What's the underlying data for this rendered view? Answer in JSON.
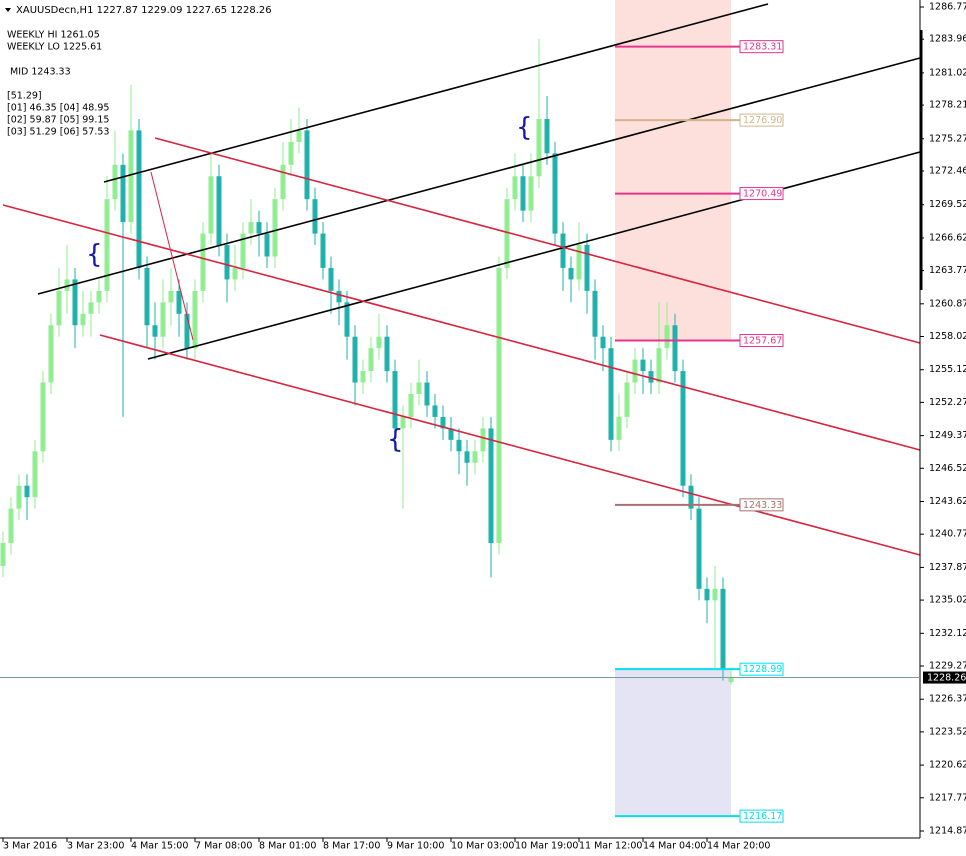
{
  "chart_data": {
    "type": "candlestick",
    "symbol": "XAUUSDecn,H1",
    "info": [
      "WEEKLY HI 1261.05",
      "WEEKLY LO 1225.61",
      "MID 1243.33",
      "[51.29]",
      "[01] 46.35  [04] 48.95",
      "[02] 59.87  [05] 99.15",
      "[03] 51.29  [06] 57.53"
    ],
    "categories": [
      "3 Mar 2016",
      null,
      null,
      null,
      null,
      null,
      null,
      null,
      "3 Mar 23:00",
      null,
      null,
      null,
      null,
      null,
      null,
      null,
      "4 Mar 15:00",
      null,
      null,
      null,
      null,
      null,
      null,
      null,
      "7 Mar 08:00",
      null,
      null,
      null,
      null,
      null,
      null,
      null,
      "8 Mar 01:00",
      null,
      null,
      null,
      null,
      null,
      null,
      null,
      "8 Mar 17:00",
      null,
      null,
      null,
      null,
      null,
      null,
      null,
      "9 Mar 10:00",
      null,
      null,
      null,
      null,
      null,
      null,
      null,
      "10 Mar 03:00",
      null,
      null,
      null,
      null,
      null,
      null,
      null,
      "10 Mar 19:00",
      null,
      null,
      null,
      null,
      null,
      null,
      null,
      "11 Mar 12:00",
      null,
      null,
      null,
      null,
      null,
      null,
      null,
      "14 Mar 04:00",
      null,
      null,
      null,
      null,
      null,
      null,
      null,
      "14 Mar 20:00",
      null,
      null,
      null
    ],
    "open": [
      1238,
      1240,
      1243,
      1245,
      1244,
      1248,
      1254,
      1259,
      1262,
      1263,
      1259,
      1260,
      1261,
      1262,
      1270,
      1273,
      1268,
      1276,
      1264,
      1259,
      1258,
      1261,
      1262,
      1260,
      1257,
      1262,
      1267,
      1272,
      1266,
      1263,
      1264,
      1267,
      1268,
      1267,
      1265,
      1270,
      1273,
      1275,
      1276,
      1270,
      1267,
      1264,
      1262,
      1261,
      1258,
      1254,
      1255,
      1257,
      1258,
      1255,
      1250,
      1251,
      1253,
      1254,
      1252,
      1251,
      1250,
      1249,
      1248,
      1247,
      1248,
      1250,
      1240,
      1264,
      1270,
      1272,
      1269,
      1272,
      1277,
      1274,
      1267,
      1264,
      1263,
      1266,
      1262,
      1258,
      1257,
      1249,
      1251,
      1254,
      1256,
      1255,
      1254,
      1257,
      1259,
      1255,
      1245,
      1243,
      1236,
      1235,
      1236,
      1227.87
    ],
    "high": [
      1241,
      1244,
      1246,
      1246,
      1249,
      1255,
      1260,
      1264,
      1266,
      1264,
      1262,
      1262,
      1263,
      1272,
      1276,
      1274,
      1280,
      1277,
      1265,
      1261,
      1263,
      1264,
      1263,
      1261,
      1263,
      1268,
      1274,
      1273,
      1267,
      1266,
      1268,
      1270,
      1269,
      1268,
      1271,
      1275,
      1277,
      1278,
      1277,
      1271,
      1268,
      1265,
      1263,
      1262,
      1259,
      1256,
      1258,
      1260,
      1259,
      1256,
      1252,
      1254,
      1256,
      1255,
      1253,
      1252,
      1251,
      1250,
      1249,
      1249,
      1251,
      1251,
      1265,
      1271,
      1274,
      1273,
      1274,
      1284,
      1279,
      1275,
      1268,
      1265,
      1268,
      1267,
      1263,
      1259,
      1258,
      1253,
      1255,
      1257,
      1257,
      1256,
      1261,
      1261,
      1260,
      1256,
      1246,
      1244,
      1237,
      1238,
      1237,
      1229.09
    ],
    "low": [
      1237,
      1239,
      1242,
      1242,
      1243,
      1247,
      1253,
      1258,
      1260,
      1257,
      1258,
      1258,
      1260,
      1261,
      1269,
      1251,
      1267,
      1263,
      1257,
      1256,
      1257,
      1259,
      1258,
      1256,
      1256,
      1261,
      1266,
      1265,
      1261,
      1262,
      1263,
      1266,
      1265,
      1264,
      1264,
      1269,
      1272,
      1274,
      1269,
      1266,
      1263,
      1260,
      1259,
      1256,
      1252,
      1253,
      1254,
      1256,
      1254,
      1248,
      1243,
      1250,
      1252,
      1251,
      1250,
      1249,
      1248,
      1246,
      1245,
      1246,
      1247,
      1237,
      1239,
      1263,
      1269,
      1268,
      1268,
      1271,
      1273,
      1266,
      1262,
      1261,
      1262,
      1260,
      1256,
      1255,
      1248,
      1248,
      1250,
      1253,
      1253,
      1253,
      1253,
      1256,
      1254,
      1244,
      1242,
      1235,
      1233,
      1229,
      1228,
      1227.65
    ],
    "close": [
      1240,
      1243,
      1245,
      1244,
      1248,
      1254,
      1259,
      1262,
      1263,
      1259,
      1260,
      1261,
      1262,
      1270,
      1273,
      1268,
      1276,
      1264,
      1259,
      1258,
      1261,
      1262,
      1260,
      1257,
      1262,
      1267,
      1272,
      1266,
      1263,
      1264,
      1267,
      1268,
      1267,
      1265,
      1270,
      1273,
      1275,
      1276,
      1270,
      1267,
      1264,
      1262,
      1261,
      1258,
      1254,
      1255,
      1257,
      1258,
      1255,
      1250,
      1251,
      1253,
      1254,
      1252,
      1251,
      1250,
      1249,
      1248,
      1247,
      1248,
      1250,
      1240,
      1264,
      1270,
      1272,
      1269,
      1272,
      1277,
      1274,
      1267,
      1264,
      1263,
      1266,
      1262,
      1258,
      1257,
      1249,
      1251,
      1254,
      1256,
      1255,
      1254,
      1257,
      1259,
      1255,
      1245,
      1243,
      1236,
      1235,
      1236,
      1229,
      1228.26
    ],
    "up_color": "#90ee90",
    "down_color": "#20b2aa",
    "ylim": [
      1214.26,
      1287.38
    ],
    "yticks": [
      1286.77,
      1283.96,
      1281.02,
      1278.21,
      1275.27,
      1272.46,
      1269.52,
      1266.62,
      1263.77,
      1260.87,
      1258.02,
      1255.12,
      1252.27,
      1249.37,
      1246.52,
      1243.62,
      1240.77,
      1237.87,
      1235.02,
      1232.12,
      1229.27,
      1226.37,
      1223.52,
      1220.62,
      1217.77,
      1214.87
    ],
    "levels": [
      {
        "value": 1283.31,
        "color": "#e6358f"
      },
      {
        "value": 1276.9,
        "label": "1276.90",
        "color": "#d2b48c"
      },
      {
        "value": 1270.49,
        "color": "#e6358f"
      },
      {
        "value": 1257.67,
        "color": "#e6358f"
      },
      {
        "value": 1243.33,
        "color": "#a87070"
      },
      {
        "value": 1228.99,
        "color": "#00e0ee"
      },
      {
        "value": 1216.17,
        "color": "#00e0ee"
      }
    ]
  }
}
